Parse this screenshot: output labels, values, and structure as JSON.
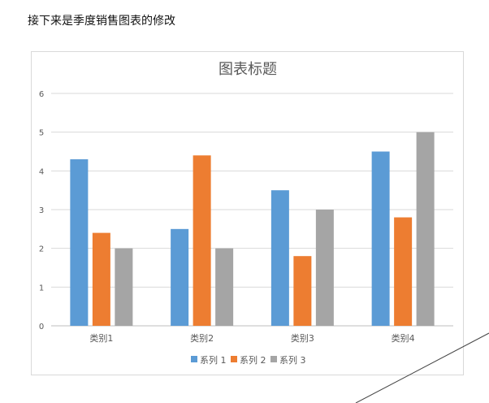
{
  "document": {
    "heading": "接下来是季度销售图表的修改"
  },
  "chart_data": {
    "type": "bar",
    "title": "图表标题",
    "categories": [
      "类别1",
      "类别2",
      "类别3",
      "类别4"
    ],
    "series": [
      {
        "name": "系列 1",
        "values": [
          4.3,
          2.5,
          3.5,
          4.5
        ],
        "color": "#5B9BD5"
      },
      {
        "name": "系列 2",
        "values": [
          2.4,
          4.4,
          1.8,
          2.8
        ],
        "color": "#ED7D31"
      },
      {
        "name": "系列 3",
        "values": [
          2,
          2,
          3,
          5
        ],
        "color": "#A5A5A5"
      }
    ],
    "ylim": [
      0,
      6
    ],
    "yticks": [
      "0",
      "1",
      "2",
      "3",
      "4",
      "5",
      "6"
    ],
    "grid": true,
    "legend": "bottom"
  }
}
